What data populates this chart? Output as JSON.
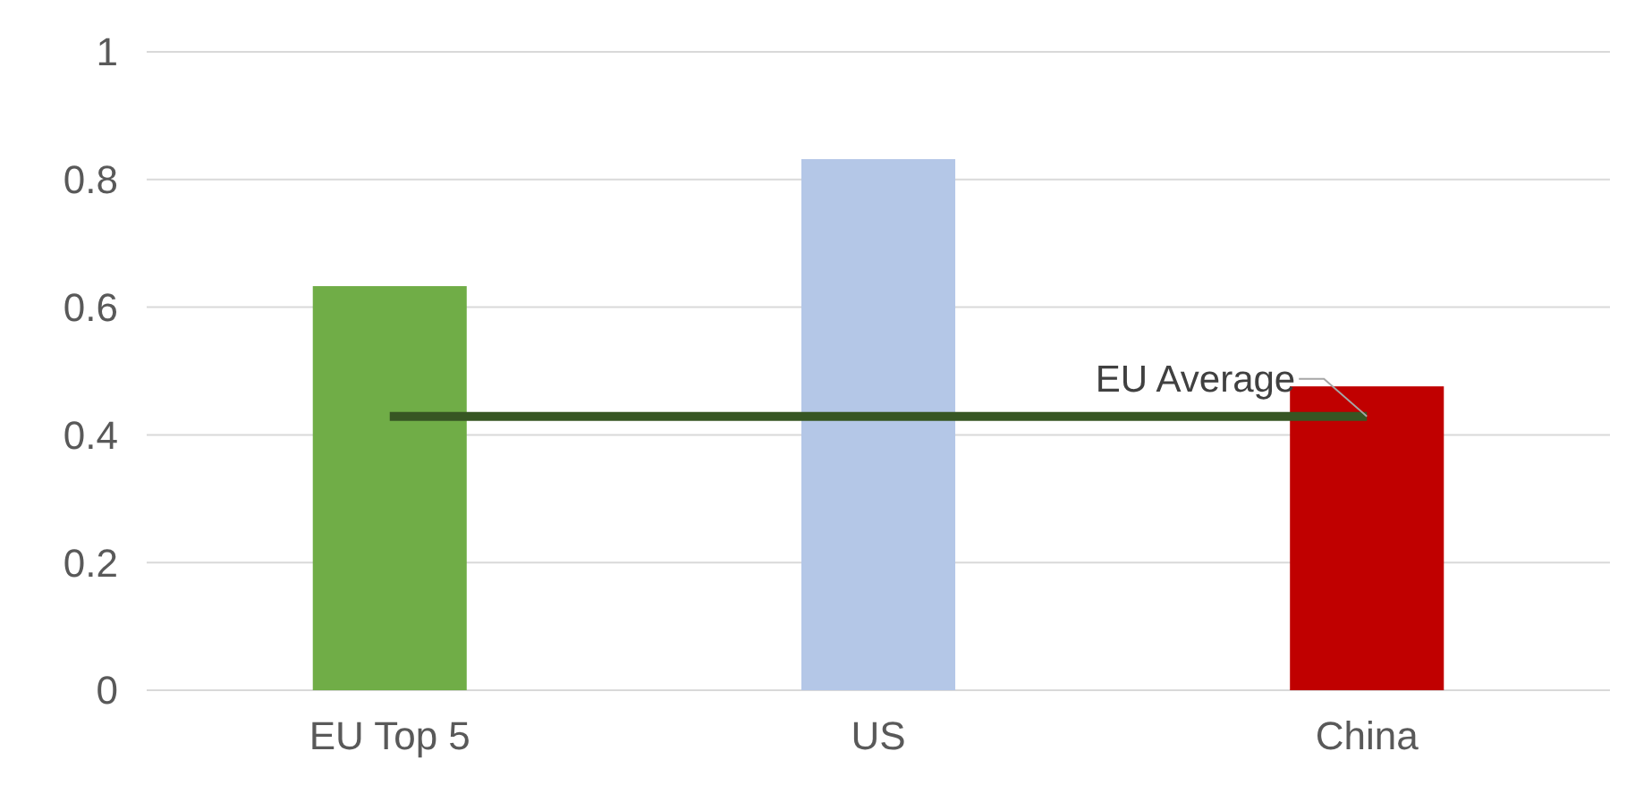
{
  "chart_data": {
    "type": "bar",
    "categories": [
      "EU Top 5",
      "US",
      "China"
    ],
    "series": [
      {
        "colors": [
          "#70ad47",
          "#b4c7e7",
          "#c00000"
        ],
        "values": [
          0.633,
          0.832,
          0.476
        ]
      },
      {
        "type": "line",
        "name": "EU Average",
        "color": "#375623",
        "values": [
          0.429,
          0.429,
          0.429
        ]
      }
    ],
    "ylim": [
      0,
      1
    ],
    "yticks": [
      0,
      0.2,
      0.4,
      0.6,
      0.8,
      1
    ],
    "grid": "y",
    "legend": false
  }
}
